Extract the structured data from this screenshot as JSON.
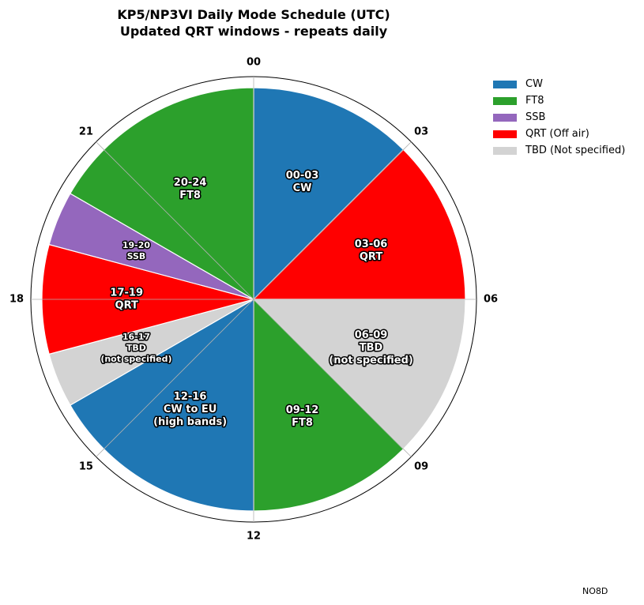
{
  "title": {
    "line1": "KP5/NP3VI Daily Mode Schedule (UTC)",
    "line2": "Updated QRT windows - repeats daily"
  },
  "credit": "NO8D",
  "colors": {
    "CW": "#1f77b4",
    "FT8": "#2ca02c",
    "SSB": "#9467bd",
    "QRT": "#ff0000",
    "TBD": "#d3d3d3"
  },
  "legend": [
    {
      "key": "CW",
      "label": "CW"
    },
    {
      "key": "FT8",
      "label": "FT8"
    },
    {
      "key": "SSB",
      "label": "SSB"
    },
    {
      "key": "QRT",
      "label": "QRT (Off air)"
    },
    {
      "key": "TBD",
      "label": "TBD (Not specified)"
    }
  ],
  "chart_data": {
    "type": "pie",
    "title": "KP5/NP3VI Daily Mode Schedule (UTC)\nUpdated QRT windows - repeats daily",
    "start_hour": 0,
    "end_hour": 24,
    "direction": "clockwise",
    "hour_ticks": [
      "00",
      "03",
      "06",
      "09",
      "12",
      "15",
      "18",
      "21"
    ],
    "segments": [
      {
        "start": 0,
        "end": 3,
        "mode": "CW",
        "label": [
          "00-03",
          "CW"
        ]
      },
      {
        "start": 3,
        "end": 6,
        "mode": "QRT",
        "label": [
          "03-06",
          "QRT"
        ]
      },
      {
        "start": 6,
        "end": 9,
        "mode": "TBD",
        "label": [
          "06-09",
          "TBD",
          "(not specified)"
        ]
      },
      {
        "start": 9,
        "end": 12,
        "mode": "FT8",
        "label": [
          "09-12",
          "FT8"
        ]
      },
      {
        "start": 12,
        "end": 16,
        "mode": "CW",
        "label": [
          "12-16",
          "CW to EU",
          "(high bands)"
        ]
      },
      {
        "start": 16,
        "end": 17,
        "mode": "TBD",
        "label": [
          "16-17",
          "TBD",
          "(not specified)"
        ]
      },
      {
        "start": 17,
        "end": 19,
        "mode": "QRT",
        "label": [
          "17-19",
          "QRT"
        ]
      },
      {
        "start": 19,
        "end": 20,
        "mode": "SSB",
        "label": [
          "19-20",
          "SSB"
        ]
      },
      {
        "start": 20,
        "end": 24,
        "mode": "FT8",
        "label": [
          "20-24",
          "FT8"
        ]
      }
    ]
  }
}
